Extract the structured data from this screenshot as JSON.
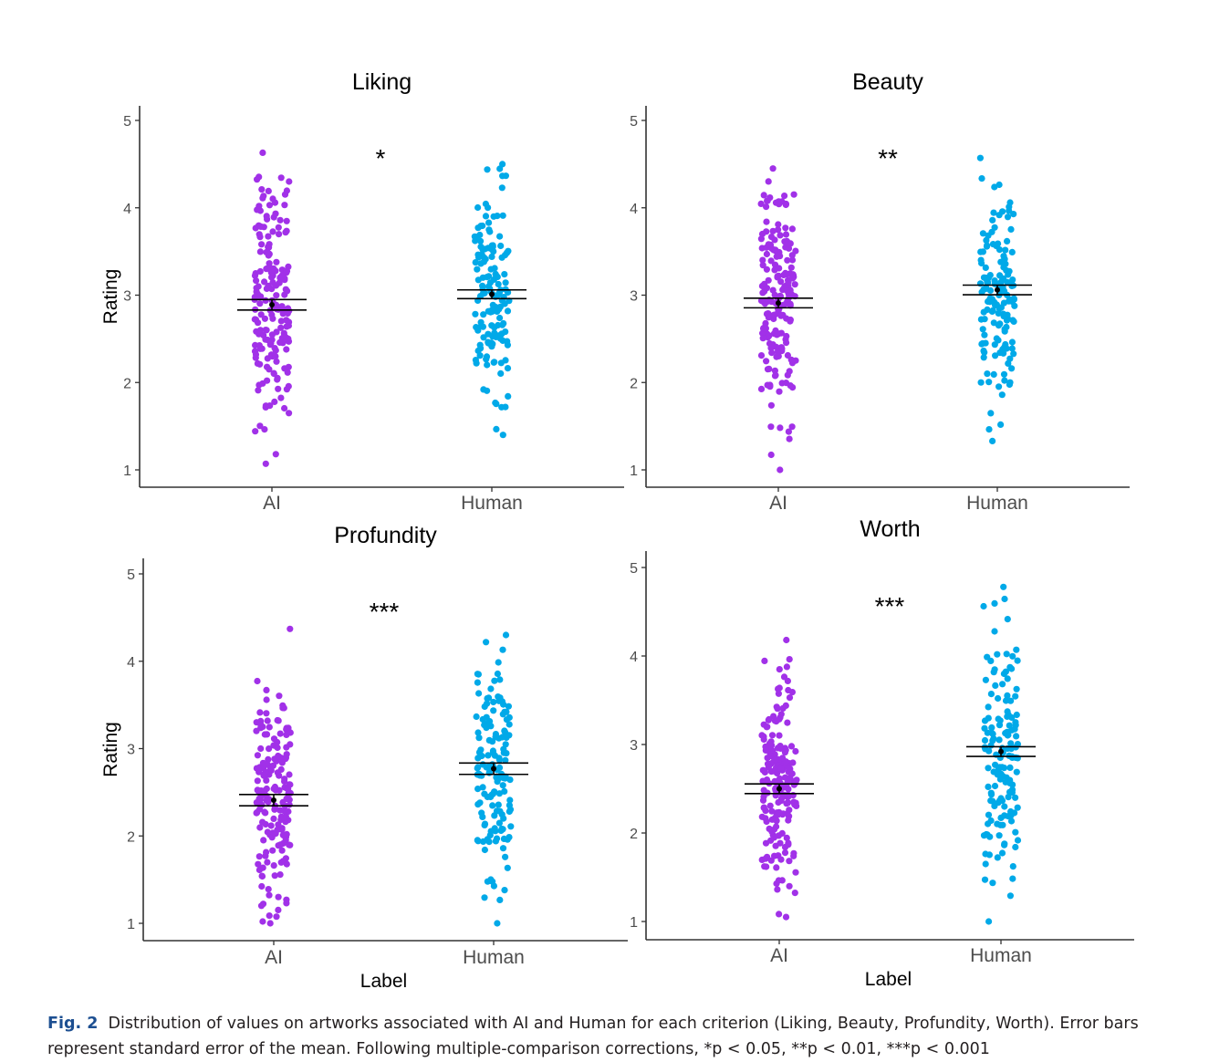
{
  "figure": {
    "y_axis_label": "Rating",
    "x_axis_label": "Label",
    "colors": {
      "AI": "#a131e8",
      "Human": "#00a9e8",
      "axis": "#333333",
      "error_bar": "#000000"
    }
  },
  "chart_data": [
    {
      "type": "scatter",
      "title": "Liking",
      "categories": [
        "AI",
        "Human"
      ],
      "ylim": [
        1,
        5
      ],
      "yticks": [
        1,
        2,
        3,
        4,
        5
      ],
      "ylabel": "Rating",
      "xlabel": "",
      "significance": "*",
      "series": [
        {
          "name": "AI",
          "mean": 2.89,
          "se": 0.06,
          "min": 1.07,
          "max": 4.63,
          "n": 190
        },
        {
          "name": "Human",
          "mean": 3.01,
          "se": 0.05,
          "min": 1.4,
          "max": 4.5,
          "n": 150
        }
      ]
    },
    {
      "type": "scatter",
      "title": "Beauty",
      "categories": [
        "AI",
        "Human"
      ],
      "ylim": [
        1,
        5
      ],
      "yticks": [
        1,
        2,
        3,
        4,
        5
      ],
      "ylabel": "",
      "xlabel": "",
      "significance": "**",
      "series": [
        {
          "name": "AI",
          "mean": 2.91,
          "se": 0.055,
          "min": 1.0,
          "max": 4.45,
          "n": 190
        },
        {
          "name": "Human",
          "mean": 3.06,
          "se": 0.055,
          "min": 1.33,
          "max": 4.57,
          "n": 150
        }
      ]
    },
    {
      "type": "scatter",
      "title": "Profundity",
      "categories": [
        "AI",
        "Human"
      ],
      "ylim": [
        1,
        5
      ],
      "yticks": [
        1,
        2,
        3,
        4,
        5
      ],
      "ylabel": "Rating",
      "xlabel": "Label",
      "significance": "***",
      "series": [
        {
          "name": "AI",
          "mean": 2.41,
          "se": 0.065,
          "min": 1.0,
          "max": 4.37,
          "n": 190
        },
        {
          "name": "Human",
          "mean": 2.77,
          "se": 0.065,
          "min": 1.0,
          "max": 4.3,
          "n": 150
        }
      ]
    },
    {
      "type": "scatter",
      "title": "Worth",
      "categories": [
        "AI",
        "Human"
      ],
      "ylim": [
        1,
        5
      ],
      "yticks": [
        1,
        2,
        3,
        4,
        5
      ],
      "ylabel": "",
      "xlabel": "Label",
      "significance": "***",
      "series": [
        {
          "name": "AI",
          "mean": 2.5,
          "se": 0.055,
          "min": 1.05,
          "max": 4.18,
          "n": 190
        },
        {
          "name": "Human",
          "mean": 2.92,
          "se": 0.055,
          "min": 1.0,
          "max": 4.78,
          "n": 150
        }
      ]
    }
  ],
  "caption": {
    "label": "Fig. 2",
    "text": "Distribution of values on artworks associated with AI and Human for each criterion (Liking, Beauty, Profundity, Worth). Error bars represent standard error of the mean. Following multiple-comparison corrections, *p < 0.05, **p < 0.01, ***p < 0.001"
  }
}
